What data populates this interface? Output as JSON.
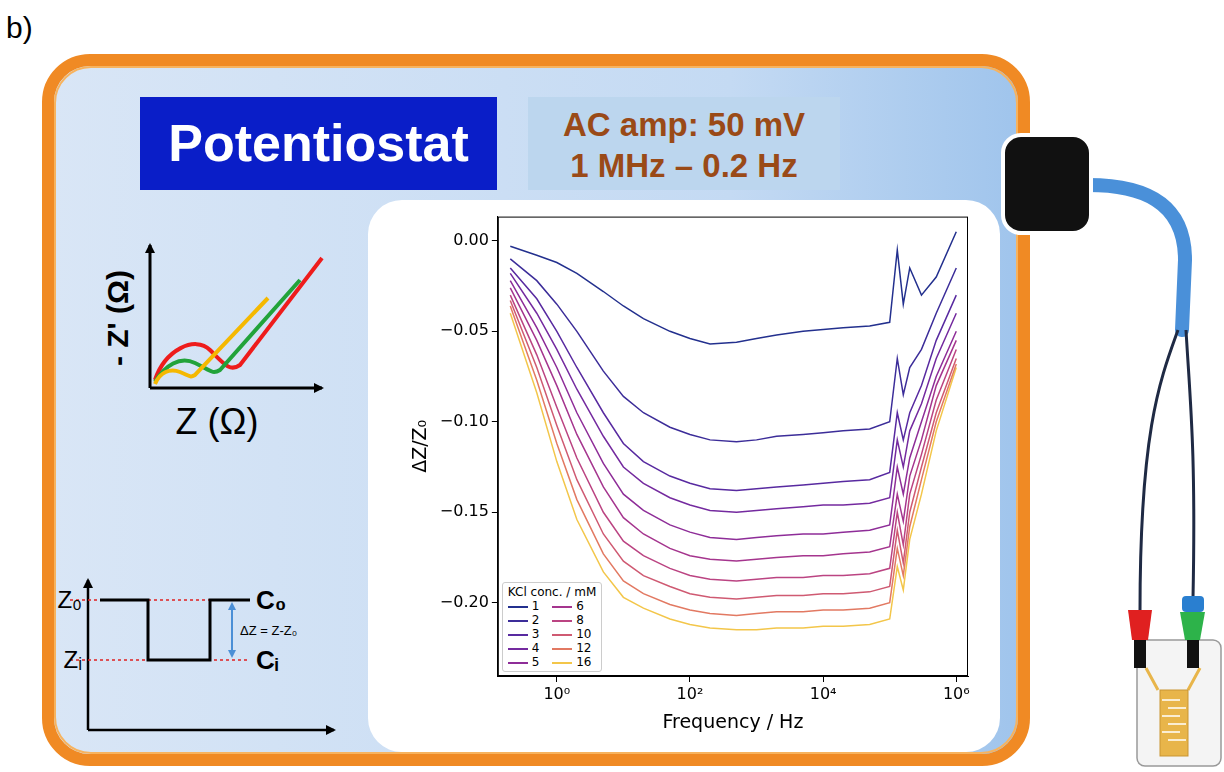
{
  "panel_label": "b)",
  "header": {
    "title": "Potentiostat",
    "settings": [
      "AC amp: 50 mV",
      "1 MHz – 0.2 Hz"
    ]
  },
  "nyquist_sketch": {
    "y_label": "- Z' (Ω)",
    "x_label": "Z (Ω)"
  },
  "step_sketch": {
    "levels": [
      "Z₀",
      "Zᵢ"
    ],
    "states": [
      "C₀",
      "Cᵢ"
    ],
    "delta": "ΔZ = Z-Z₀"
  },
  "chart_data": {
    "type": "line",
    "x_label": "Frequency / Hz",
    "y_label": "ΔZ/Z₀",
    "log": "x",
    "grid": false,
    "legend": "lower left",
    "legend_title": "KCl conc. / mM",
    "xlim": [
      0.13,
      1500000
    ],
    "xticks": [
      {
        "value": 1,
        "label": "10⁰"
      },
      {
        "value": 100,
        "label": "10²"
      },
      {
        "value": 10000,
        "label": "10⁴"
      },
      {
        "value": 1000000,
        "label": "10⁶"
      }
    ],
    "ylim": [
      -0.2405,
      0.0134
    ],
    "yticks": [
      {
        "value": 0,
        "label": "0.00"
      },
      {
        "value": -0.05,
        "label": "−0.05"
      },
      {
        "value": -0.1,
        "label": "−0.10"
      },
      {
        "value": -0.15,
        "label": "−0.15"
      },
      {
        "value": -0.2,
        "label": "−0.20"
      }
    ],
    "x": [
      0.2,
      0.5,
      1,
      2,
      5,
      10,
      20,
      50,
      100,
      200,
      500,
      1000,
      2000,
      5000,
      10000,
      20000,
      50000,
      100000,
      130000,
      160000,
      200000,
      300000,
      500000,
      1000000
    ],
    "series": [
      {
        "name": "1",
        "color": "#23308e",
        "values": [
          -0.003,
          -0.008,
          -0.012,
          -0.018,
          -0.028,
          -0.036,
          -0.043,
          -0.05,
          -0.054,
          -0.057,
          -0.056,
          -0.054,
          -0.052,
          -0.05,
          -0.049,
          -0.048,
          -0.047,
          -0.045,
          -0.005,
          -0.035,
          -0.015,
          -0.03,
          -0.02,
          0.005
        ]
      },
      {
        "name": "2",
        "color": "#3c2d99",
        "values": [
          -0.01,
          -0.022,
          -0.035,
          -0.05,
          -0.072,
          -0.086,
          -0.095,
          -0.103,
          -0.107,
          -0.11,
          -0.111,
          -0.11,
          -0.108,
          -0.107,
          -0.106,
          -0.105,
          -0.104,
          -0.1,
          -0.065,
          -0.085,
          -0.07,
          -0.06,
          -0.04,
          -0.015
        ]
      },
      {
        "name": "3",
        "color": "#582aa0",
        "values": [
          -0.015,
          -0.032,
          -0.05,
          -0.07,
          -0.095,
          -0.112,
          -0.122,
          -0.13,
          -0.134,
          -0.137,
          -0.138,
          -0.137,
          -0.136,
          -0.135,
          -0.134,
          -0.133,
          -0.132,
          -0.128,
          -0.095,
          -0.11,
          -0.095,
          -0.08,
          -0.055,
          -0.03
        ]
      },
      {
        "name": "4",
        "color": "#742a9f",
        "values": [
          -0.018,
          -0.04,
          -0.06,
          -0.082,
          -0.108,
          -0.125,
          -0.134,
          -0.142,
          -0.146,
          -0.149,
          -0.15,
          -0.149,
          -0.148,
          -0.147,
          -0.146,
          -0.146,
          -0.145,
          -0.142,
          -0.11,
          -0.125,
          -0.105,
          -0.09,
          -0.065,
          -0.04
        ]
      },
      {
        "name": "5",
        "color": "#8e2d98",
        "values": [
          -0.022,
          -0.048,
          -0.07,
          -0.095,
          -0.123,
          -0.14,
          -0.149,
          -0.157,
          -0.161,
          -0.164,
          -0.165,
          -0.164,
          -0.163,
          -0.162,
          -0.162,
          -0.161,
          -0.16,
          -0.157,
          -0.125,
          -0.14,
          -0.12,
          -0.1,
          -0.075,
          -0.05
        ]
      },
      {
        "name": "6",
        "color": "#a5358e",
        "values": [
          -0.026,
          -0.055,
          -0.08,
          -0.107,
          -0.136,
          -0.153,
          -0.162,
          -0.17,
          -0.174,
          -0.176,
          -0.177,
          -0.176,
          -0.175,
          -0.174,
          -0.174,
          -0.173,
          -0.172,
          -0.169,
          -0.14,
          -0.155,
          -0.13,
          -0.11,
          -0.08,
          -0.055
        ]
      },
      {
        "name": "8",
        "color": "#bb4482",
        "values": [
          -0.03,
          -0.063,
          -0.092,
          -0.12,
          -0.15,
          -0.166,
          -0.174,
          -0.181,
          -0.185,
          -0.187,
          -0.188,
          -0.187,
          -0.186,
          -0.186,
          -0.185,
          -0.185,
          -0.184,
          -0.181,
          -0.15,
          -0.168,
          -0.14,
          -0.118,
          -0.088,
          -0.06
        ]
      },
      {
        "name": "10",
        "color": "#cf5a72",
        "values": [
          -0.033,
          -0.07,
          -0.102,
          -0.132,
          -0.162,
          -0.177,
          -0.185,
          -0.191,
          -0.195,
          -0.197,
          -0.198,
          -0.197,
          -0.196,
          -0.196,
          -0.195,
          -0.195,
          -0.194,
          -0.191,
          -0.16,
          -0.178,
          -0.15,
          -0.125,
          -0.095,
          -0.065
        ]
      },
      {
        "name": "12",
        "color": "#e27962",
        "values": [
          -0.036,
          -0.077,
          -0.112,
          -0.143,
          -0.173,
          -0.188,
          -0.195,
          -0.201,
          -0.204,
          -0.206,
          -0.207,
          -0.206,
          -0.205,
          -0.205,
          -0.204,
          -0.204,
          -0.203,
          -0.2,
          -0.17,
          -0.185,
          -0.158,
          -0.132,
          -0.1,
          -0.068
        ]
      },
      {
        "name": "16",
        "color": "#f3c64a",
        "values": [
          -0.04,
          -0.084,
          -0.122,
          -0.154,
          -0.183,
          -0.197,
          -0.203,
          -0.209,
          -0.212,
          -0.214,
          -0.215,
          -0.215,
          -0.214,
          -0.214,
          -0.213,
          -0.213,
          -0.212,
          -0.209,
          -0.18,
          -0.193,
          -0.165,
          -0.14,
          -0.105,
          -0.07
        ]
      }
    ]
  }
}
